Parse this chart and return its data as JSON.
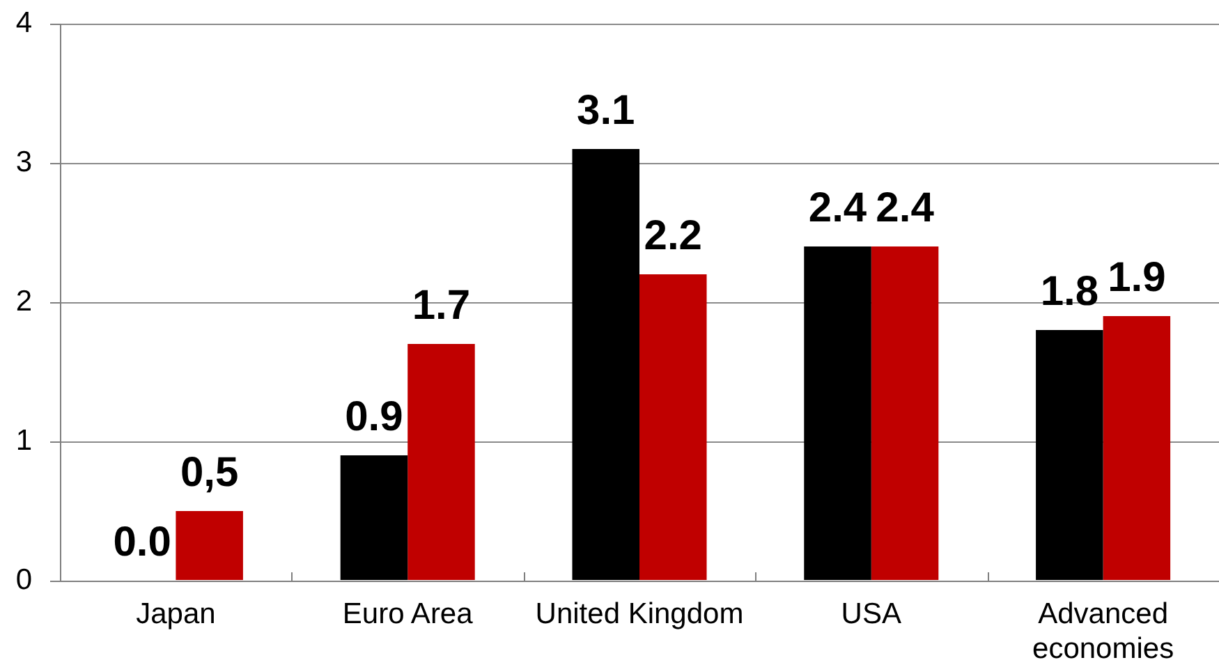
{
  "chart_data": {
    "type": "bar",
    "categories": [
      "Japan",
      "Euro Area",
      "United Kingdom",
      "USA",
      "Advanced economies"
    ],
    "series": [
      {
        "color": "#000000",
        "values": [
          0.0,
          0.9,
          3.1,
          2.4,
          1.8
        ],
        "value_labels": [
          "0.0",
          "0.9",
          "3.1",
          "2.4",
          "1.8"
        ]
      },
      {
        "color": "#c00000",
        "values": [
          0.5,
          1.7,
          2.2,
          2.4,
          1.9
        ],
        "value_labels": [
          "0,5",
          "1.7",
          "2.2",
          "2.4",
          "1.9"
        ]
      }
    ],
    "ylim": [
      0,
      4
    ],
    "yticks": [
      0,
      1,
      2,
      3,
      4
    ],
    "grid": "y"
  }
}
